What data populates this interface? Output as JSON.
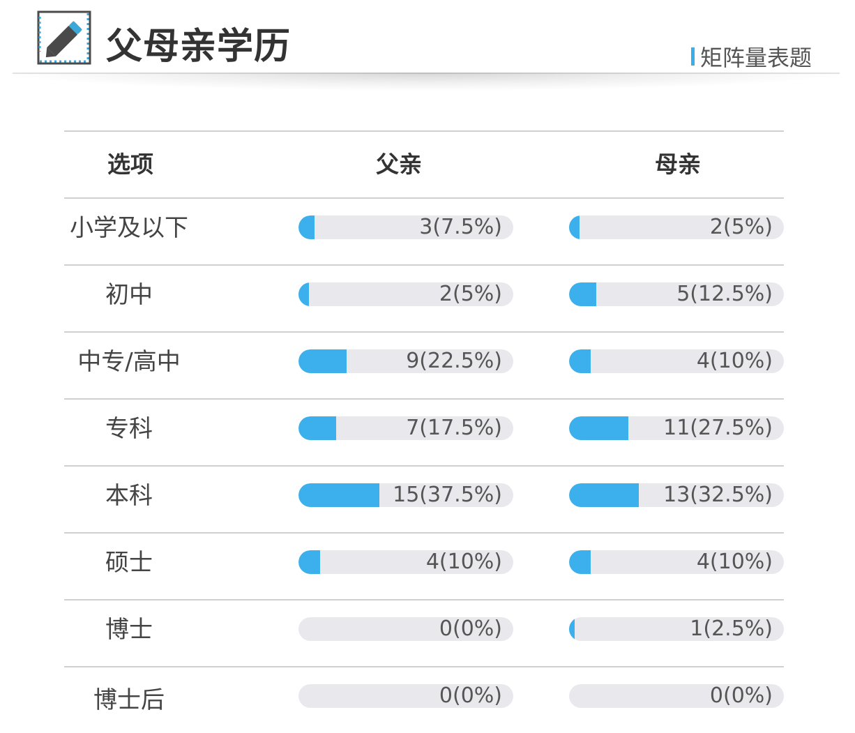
{
  "header": {
    "title": "父母亲学历",
    "tag": "矩阵量表题",
    "icon": "edit-pencil-icon",
    "accent_color": "#3cb0ec"
  },
  "table": {
    "columns": [
      "选项",
      "父亲",
      "母亲"
    ],
    "rows": [
      {
        "option": "小学及以下",
        "father": {
          "label": "3(7.5%)",
          "percent": 7.5
        },
        "mother": {
          "label": "2(5%)",
          "percent": 5
        }
      },
      {
        "option": "初中",
        "father": {
          "label": "2(5%)",
          "percent": 5
        },
        "mother": {
          "label": "5(12.5%)",
          "percent": 12.5
        }
      },
      {
        "option": "中专/高中",
        "father": {
          "label": "9(22.5%)",
          "percent": 22.5
        },
        "mother": {
          "label": "4(10%)",
          "percent": 10
        }
      },
      {
        "option": "专科",
        "father": {
          "label": "7(17.5%)",
          "percent": 17.5
        },
        "mother": {
          "label": "11(27.5%)",
          "percent": 27.5
        }
      },
      {
        "option": "本科",
        "father": {
          "label": "15(37.5%)",
          "percent": 37.5
        },
        "mother": {
          "label": "13(32.5%)",
          "percent": 32.5
        }
      },
      {
        "option": "硕士",
        "father": {
          "label": "4(10%)",
          "percent": 10
        },
        "mother": {
          "label": "4(10%)",
          "percent": 10
        }
      },
      {
        "option": "博士",
        "father": {
          "label": "0(0%)",
          "percent": 0
        },
        "mother": {
          "label": "1(2.5%)",
          "percent": 2.5
        }
      },
      {
        "option": "博士后",
        "father": {
          "label": "0(0%)",
          "percent": 0
        },
        "mother": {
          "label": "0(0%)",
          "percent": 0
        }
      }
    ]
  }
}
